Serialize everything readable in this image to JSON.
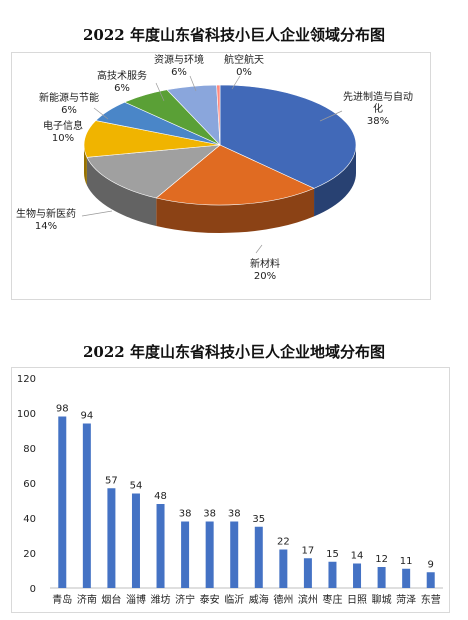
{
  "charts": {
    "pie_title": "2022 年度山东省科技小巨人企业领域分布图",
    "bar_title": "2022 年度山东省科技小巨人企业地域分布图"
  },
  "chart_data": [
    {
      "type": "pie",
      "title": "2022 年度山东省科技小巨人企业领域分布图",
      "slices": [
        {
          "label": "先进制造与自动化",
          "percent_label": "38%",
          "value": 38,
          "color": "#4169b8"
        },
        {
          "label": "新材料",
          "percent_label": "20%",
          "value": 20,
          "color": "#e06b22"
        },
        {
          "label": "生物与新医药",
          "percent_label": "14%",
          "value": 14,
          "color": "#a0a0a0"
        },
        {
          "label": "电子信息",
          "percent_label": "10%",
          "value": 10,
          "color": "#f0b400"
        },
        {
          "label": "新能源与节能",
          "percent_label": "6%",
          "value": 6,
          "color": "#4a86c8"
        },
        {
          "label": "高技术服务",
          "percent_label": "6%",
          "value": 6,
          "color": "#5aa036"
        },
        {
          "label": "资源与环境",
          "percent_label": "6%",
          "value": 6,
          "color": "#8aa6dc"
        },
        {
          "label": "航空航天",
          "percent_label": "0%",
          "value": 0.4,
          "color": "#ff8a80"
        }
      ]
    },
    {
      "type": "bar",
      "title": "2022 年度山东省科技小巨人企业地域分布图",
      "categories": [
        "青岛",
        "济南",
        "烟台",
        "淄博",
        "潍坊",
        "济宁",
        "泰安",
        "临沂",
        "威海",
        "德州",
        "滨州",
        "枣庄",
        "日照",
        "聊城",
        "菏泽",
        "东营"
      ],
      "values": [
        98,
        94,
        57,
        54,
        48,
        38,
        38,
        38,
        35,
        22,
        17,
        15,
        14,
        12,
        11,
        9
      ],
      "ylim": [
        0,
        120
      ],
      "yticks": [
        0,
        20,
        40,
        60,
        80,
        100,
        120
      ],
      "bar_color": "#4472c4",
      "grid": false
    }
  ]
}
